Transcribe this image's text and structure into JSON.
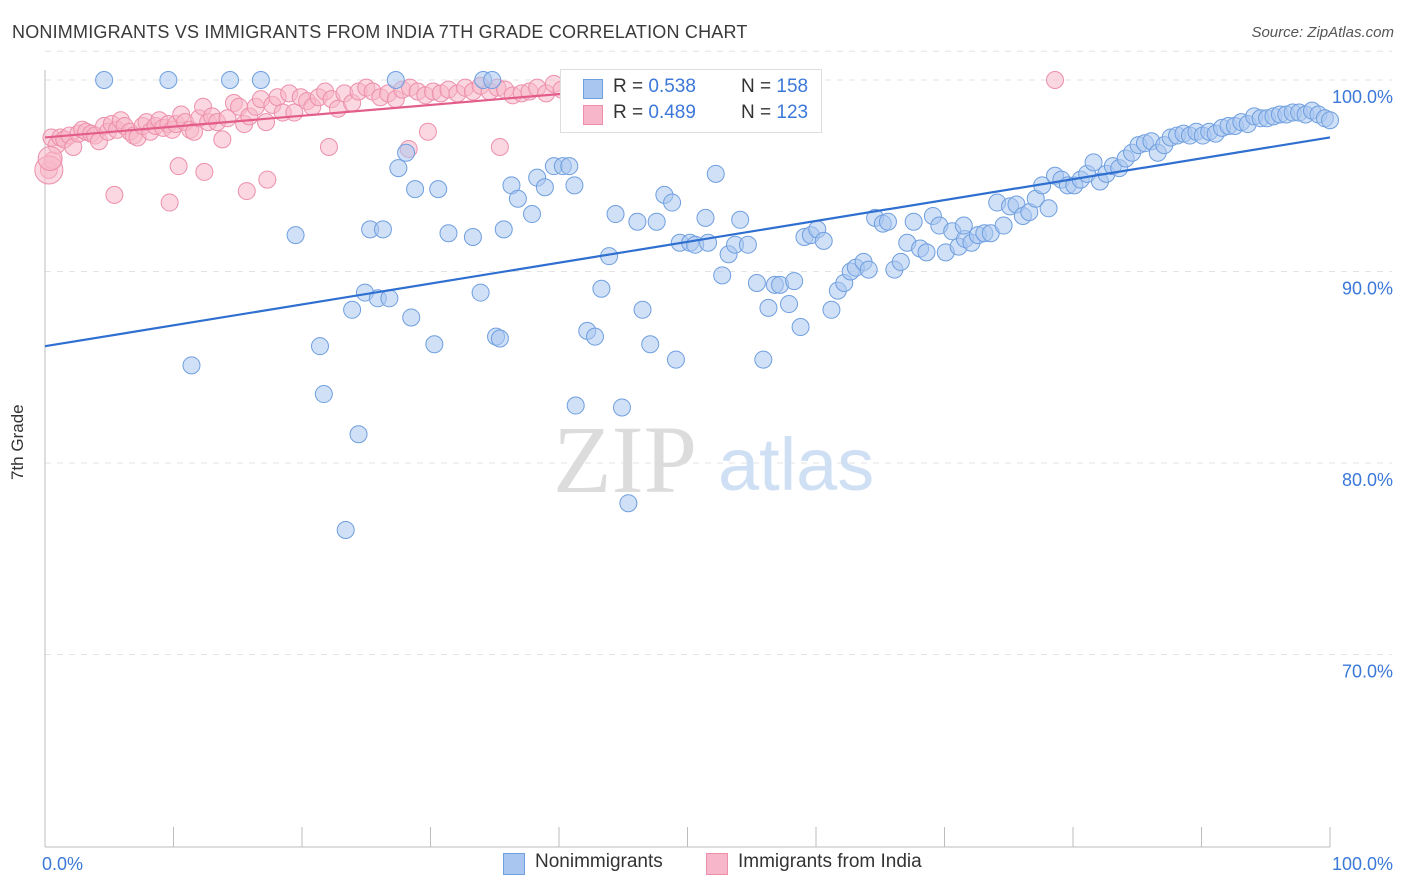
{
  "header": {
    "title": "NONIMMIGRANTS VS IMMIGRANTS FROM INDIA 7TH GRADE CORRELATION CHART",
    "source": "Source: ZipAtlas.com"
  },
  "watermark": {
    "zip": "ZIP",
    "atlas": "atlas"
  },
  "legend": {
    "rows": [
      {
        "r_label": "R = ",
        "r_value": "0.538",
        "n_label": "N = ",
        "n_value": "158"
      },
      {
        "r_label": "R = ",
        "r_value": "0.489",
        "n_label": "N = ",
        "n_value": "123"
      }
    ]
  },
  "bottom_legend": [
    "Nonimmigrants",
    "Immigrants from India"
  ],
  "colors": {
    "blue_fill": "#a9c6f0",
    "blue_stroke": "#6f9fdf",
    "blue_line": "#2f6fd0",
    "pink_fill": "#f7b6c9",
    "pink_stroke": "#ec8fab",
    "pink_line": "#e35d8a",
    "axis_text": "#3b78d8",
    "grid": "#e3e3e3"
  },
  "chart_data": {
    "type": "scatter",
    "title": "NONIMMIGRANTS VS IMMIGRANTS FROM INDIA 7TH GRADE CORRELATION CHART",
    "xlabel": "",
    "ylabel": "7th Grade",
    "xlim": [
      0,
      100
    ],
    "ylim": [
      60.5,
      101.5
    ],
    "x_tick_labels": [
      {
        "value": 0,
        "label": "0.0%"
      },
      {
        "value": 100,
        "label": "100.0%"
      }
    ],
    "y_tick_labels": [
      {
        "value": 100,
        "label": "100.0%"
      },
      {
        "value": 90,
        "label": "90.0%"
      },
      {
        "value": 80,
        "label": "80.0%"
      },
      {
        "value": 70,
        "label": "70.0%"
      }
    ],
    "grid": true,
    "series": [
      {
        "name": "Nonimmigrants",
        "R": 0.538,
        "N": 158,
        "trend": {
          "x": [
            0,
            100
          ],
          "y": [
            86.1,
            97.0
          ]
        },
        "points": [
          [
            4.6,
            100
          ],
          [
            16.8,
            100
          ],
          [
            27.3,
            100
          ],
          [
            34.1,
            100
          ],
          [
            34.8,
            100
          ],
          [
            11.4,
            85.1
          ],
          [
            19.5,
            91.9
          ],
          [
            21.4,
            86.1
          ],
          [
            21.7,
            83.6
          ],
          [
            23.4,
            76.5
          ],
          [
            23.9,
            88.0
          ],
          [
            24.4,
            81.5
          ],
          [
            24.9,
            88.9
          ],
          [
            25.3,
            92.2
          ],
          [
            25.9,
            88.6
          ],
          [
            26.3,
            92.2
          ],
          [
            26.8,
            88.6
          ],
          [
            27.5,
            95.4
          ],
          [
            28.5,
            87.6
          ],
          [
            28.1,
            96.2
          ],
          [
            28.8,
            94.3
          ],
          [
            30.3,
            86.2
          ],
          [
            30.6,
            94.3
          ],
          [
            31.4,
            92.0
          ],
          [
            33.3,
            91.8
          ],
          [
            33.9,
            88.9
          ],
          [
            35.1,
            86.6
          ],
          [
            35.4,
            86.5
          ],
          [
            35.7,
            92.2
          ],
          [
            36.3,
            94.5
          ],
          [
            36.8,
            93.8
          ],
          [
            37.9,
            93.0
          ],
          [
            38.3,
            94.9
          ],
          [
            38.9,
            94.4
          ],
          [
            39.6,
            95.5
          ],
          [
            40.3,
            95.5
          ],
          [
            40.8,
            95.5
          ],
          [
            41.3,
            83.0
          ],
          [
            42.2,
            86.9
          ],
          [
            42.8,
            86.6
          ],
          [
            43.3,
            89.1
          ],
          [
            43.9,
            90.8
          ],
          [
            44.4,
            93.0
          ],
          [
            44.9,
            82.9
          ],
          [
            45.4,
            77.9
          ],
          [
            46.1,
            92.6
          ],
          [
            46.5,
            88.0
          ],
          [
            47.1,
            86.2
          ],
          [
            47.6,
            92.6
          ],
          [
            48.2,
            94.0
          ],
          [
            48.8,
            93.6
          ],
          [
            49.1,
            85.4
          ],
          [
            49.4,
            91.5
          ],
          [
            50.2,
            91.5
          ],
          [
            50.6,
            91.4
          ],
          [
            51.4,
            92.8
          ],
          [
            51.6,
            91.5
          ],
          [
            52.2,
            95.1
          ],
          [
            52.7,
            89.8
          ],
          [
            53.2,
            90.9
          ],
          [
            53.7,
            91.4
          ],
          [
            54.1,
            92.7
          ],
          [
            54.7,
            91.4
          ],
          [
            55.4,
            89.4
          ],
          [
            55.9,
            85.4
          ],
          [
            56.3,
            88.1
          ],
          [
            56.8,
            89.3
          ],
          [
            57.2,
            89.3
          ],
          [
            57.9,
            88.3
          ],
          [
            58.3,
            89.5
          ],
          [
            58.8,
            87.1
          ],
          [
            59.1,
            91.8
          ],
          [
            59.6,
            91.9
          ],
          [
            60.1,
            92.2
          ],
          [
            60.6,
            91.6
          ],
          [
            61.2,
            88.0
          ],
          [
            61.7,
            89.0
          ],
          [
            62.2,
            89.4
          ],
          [
            62.7,
            90.0
          ],
          [
            63.1,
            90.2
          ],
          [
            63.7,
            90.5
          ],
          [
            64.1,
            90.1
          ],
          [
            64.6,
            92.8
          ],
          [
            65.2,
            92.5
          ],
          [
            65.6,
            92.6
          ],
          [
            66.1,
            90.1
          ],
          [
            66.6,
            90.5
          ],
          [
            67.1,
            91.5
          ],
          [
            67.6,
            92.6
          ],
          [
            68.1,
            91.2
          ],
          [
            68.6,
            91.0
          ],
          [
            69.1,
            92.9
          ],
          [
            69.6,
            92.4
          ],
          [
            70.1,
            91.0
          ],
          [
            70.6,
            92.1
          ],
          [
            71.1,
            91.3
          ],
          [
            71.6,
            91.7
          ],
          [
            72.1,
            91.5
          ],
          [
            72.6,
            91.9
          ],
          [
            73.1,
            92.0
          ],
          [
            73.6,
            92.0
          ],
          [
            74.1,
            93.6
          ],
          [
            74.6,
            92.4
          ],
          [
            75.1,
            93.4
          ],
          [
            75.6,
            93.5
          ],
          [
            76.1,
            92.9
          ],
          [
            76.6,
            93.1
          ],
          [
            77.1,
            93.8
          ],
          [
            77.6,
            94.5
          ],
          [
            78.1,
            93.3
          ],
          [
            78.6,
            95.0
          ],
          [
            79.1,
            94.8
          ],
          [
            79.6,
            94.5
          ],
          [
            80.1,
            94.5
          ],
          [
            80.6,
            94.8
          ],
          [
            81.1,
            95.1
          ],
          [
            81.6,
            95.7
          ],
          [
            82.1,
            94.7
          ],
          [
            82.6,
            95.1
          ],
          [
            83.1,
            95.5
          ],
          [
            83.6,
            95.4
          ],
          [
            84.1,
            95.9
          ],
          [
            84.6,
            96.2
          ],
          [
            85.1,
            96.6
          ],
          [
            85.6,
            96.7
          ],
          [
            86.1,
            96.8
          ],
          [
            86.6,
            96.2
          ],
          [
            87.1,
            96.6
          ],
          [
            87.6,
            97.0
          ],
          [
            88.1,
            97.1
          ],
          [
            88.6,
            97.2
          ],
          [
            89.1,
            97.1
          ],
          [
            89.6,
            97.3
          ],
          [
            90.1,
            97.1
          ],
          [
            90.6,
            97.3
          ],
          [
            91.1,
            97.2
          ],
          [
            91.6,
            97.5
          ],
          [
            92.1,
            97.6
          ],
          [
            92.6,
            97.6
          ],
          [
            93.1,
            97.8
          ],
          [
            93.6,
            97.7
          ],
          [
            94.1,
            98.1
          ],
          [
            94.6,
            98.0
          ],
          [
            95.1,
            98.0
          ],
          [
            95.6,
            98.1
          ],
          [
            96.1,
            98.2
          ],
          [
            96.6,
            98.2
          ],
          [
            97.1,
            98.3
          ],
          [
            97.6,
            98.3
          ],
          [
            98.1,
            98.2
          ],
          [
            98.6,
            98.4
          ],
          [
            99.1,
            98.2
          ],
          [
            99.6,
            98.0
          ],
          [
            100.0,
            97.9
          ],
          [
            9.6,
            100
          ],
          [
            14.4,
            100
          ],
          [
            41.2,
            94.5
          ],
          [
            71.5,
            92.4
          ]
        ]
      },
      {
        "name": "Immigrants from India",
        "R": 0.489,
        "N": 123,
        "trend": {
          "x": [
            0,
            53
          ],
          "y": [
            97.0,
            100.0
          ]
        },
        "points": [
          [
            0.3,
            95.3
          ],
          [
            0.6,
            95.8
          ],
          [
            0.5,
            97.0
          ],
          [
            0.9,
            96.6
          ],
          [
            1.2,
            97.0
          ],
          [
            1.5,
            96.9
          ],
          [
            1.9,
            97.1
          ],
          [
            2.2,
            96.5
          ],
          [
            2.6,
            97.2
          ],
          [
            2.9,
            97.4
          ],
          [
            3.2,
            97.3
          ],
          [
            3.6,
            97.2
          ],
          [
            3.9,
            97.1
          ],
          [
            4.2,
            96.8
          ],
          [
            4.6,
            97.6
          ],
          [
            4.9,
            97.3
          ],
          [
            5.2,
            97.7
          ],
          [
            5.6,
            97.4
          ],
          [
            5.9,
            97.9
          ],
          [
            6.2,
            97.6
          ],
          [
            6.6,
            97.3
          ],
          [
            6.9,
            97.1
          ],
          [
            7.2,
            97.0
          ],
          [
            7.6,
            97.6
          ],
          [
            7.9,
            97.8
          ],
          [
            8.2,
            97.3
          ],
          [
            8.6,
            97.6
          ],
          [
            8.9,
            97.9
          ],
          [
            9.2,
            97.5
          ],
          [
            9.6,
            97.7
          ],
          [
            9.9,
            97.4
          ],
          [
            10.2,
            97.7
          ],
          [
            10.6,
            98.2
          ],
          [
            10.9,
            97.8
          ],
          [
            11.3,
            97.4
          ],
          [
            11.6,
            97.3
          ],
          [
            12.0,
            98.0
          ],
          [
            12.3,
            98.6
          ],
          [
            12.7,
            97.8
          ],
          [
            13.0,
            98.1
          ],
          [
            13.4,
            97.8
          ],
          [
            13.8,
            96.9
          ],
          [
            14.2,
            98.0
          ],
          [
            14.7,
            98.8
          ],
          [
            15.1,
            98.6
          ],
          [
            15.5,
            97.7
          ],
          [
            15.9,
            98.1
          ],
          [
            16.4,
            98.6
          ],
          [
            16.8,
            99.0
          ],
          [
            17.2,
            97.8
          ],
          [
            17.7,
            98.7
          ],
          [
            18.1,
            99.1
          ],
          [
            18.5,
            98.3
          ],
          [
            19.0,
            99.3
          ],
          [
            19.4,
            98.3
          ],
          [
            19.9,
            99.1
          ],
          [
            20.4,
            98.9
          ],
          [
            20.8,
            98.6
          ],
          [
            21.3,
            99.1
          ],
          [
            21.8,
            99.4
          ],
          [
            22.3,
            99.0
          ],
          [
            22.8,
            98.5
          ],
          [
            23.3,
            99.3
          ],
          [
            23.9,
            98.8
          ],
          [
            24.4,
            99.4
          ],
          [
            25.0,
            99.6
          ],
          [
            25.5,
            99.4
          ],
          [
            26.1,
            99.1
          ],
          [
            26.7,
            99.3
          ],
          [
            27.3,
            99.0
          ],
          [
            27.8,
            99.5
          ],
          [
            28.4,
            99.6
          ],
          [
            29.0,
            99.4
          ],
          [
            29.6,
            99.2
          ],
          [
            30.2,
            99.4
          ],
          [
            30.8,
            99.3
          ],
          [
            31.4,
            99.5
          ],
          [
            32.1,
            99.3
          ],
          [
            32.7,
            99.6
          ],
          [
            33.3,
            99.4
          ],
          [
            33.9,
            99.7
          ],
          [
            34.6,
            99.4
          ],
          [
            35.2,
            99.6
          ],
          [
            35.8,
            99.5
          ],
          [
            36.4,
            99.2
          ],
          [
            37.1,
            99.3
          ],
          [
            37.7,
            99.4
          ],
          [
            38.3,
            99.6
          ],
          [
            39.0,
            99.3
          ],
          [
            39.6,
            99.8
          ],
          [
            40.2,
            99.5
          ],
          [
            40.8,
            99.7
          ],
          [
            41.5,
            99.8
          ],
          [
            42.1,
            99.9
          ],
          [
            42.7,
            99.7
          ],
          [
            43.3,
            100
          ],
          [
            43.9,
            99.7
          ],
          [
            44.6,
            100
          ],
          [
            45.2,
            99.8
          ],
          [
            45.8,
            99.9
          ],
          [
            46.4,
            100
          ],
          [
            47.0,
            99.9
          ],
          [
            47.6,
            100
          ],
          [
            48.2,
            100
          ],
          [
            48.8,
            100
          ],
          [
            49.4,
            100
          ],
          [
            50.0,
            100
          ],
          [
            50.6,
            100
          ],
          [
            51.2,
            100
          ],
          [
            51.8,
            100
          ],
          [
            52.4,
            100
          ],
          [
            53.0,
            100
          ],
          [
            78.6,
            100
          ],
          [
            5.4,
            94.0
          ],
          [
            10.4,
            95.5
          ],
          [
            9.7,
            93.6
          ],
          [
            12.4,
            95.2
          ],
          [
            15.7,
            94.2
          ],
          [
            17.3,
            94.8
          ],
          [
            22.1,
            96.5
          ],
          [
            28.3,
            96.4
          ],
          [
            29.8,
            97.3
          ],
          [
            35.4,
            96.5
          ]
        ]
      }
    ]
  }
}
